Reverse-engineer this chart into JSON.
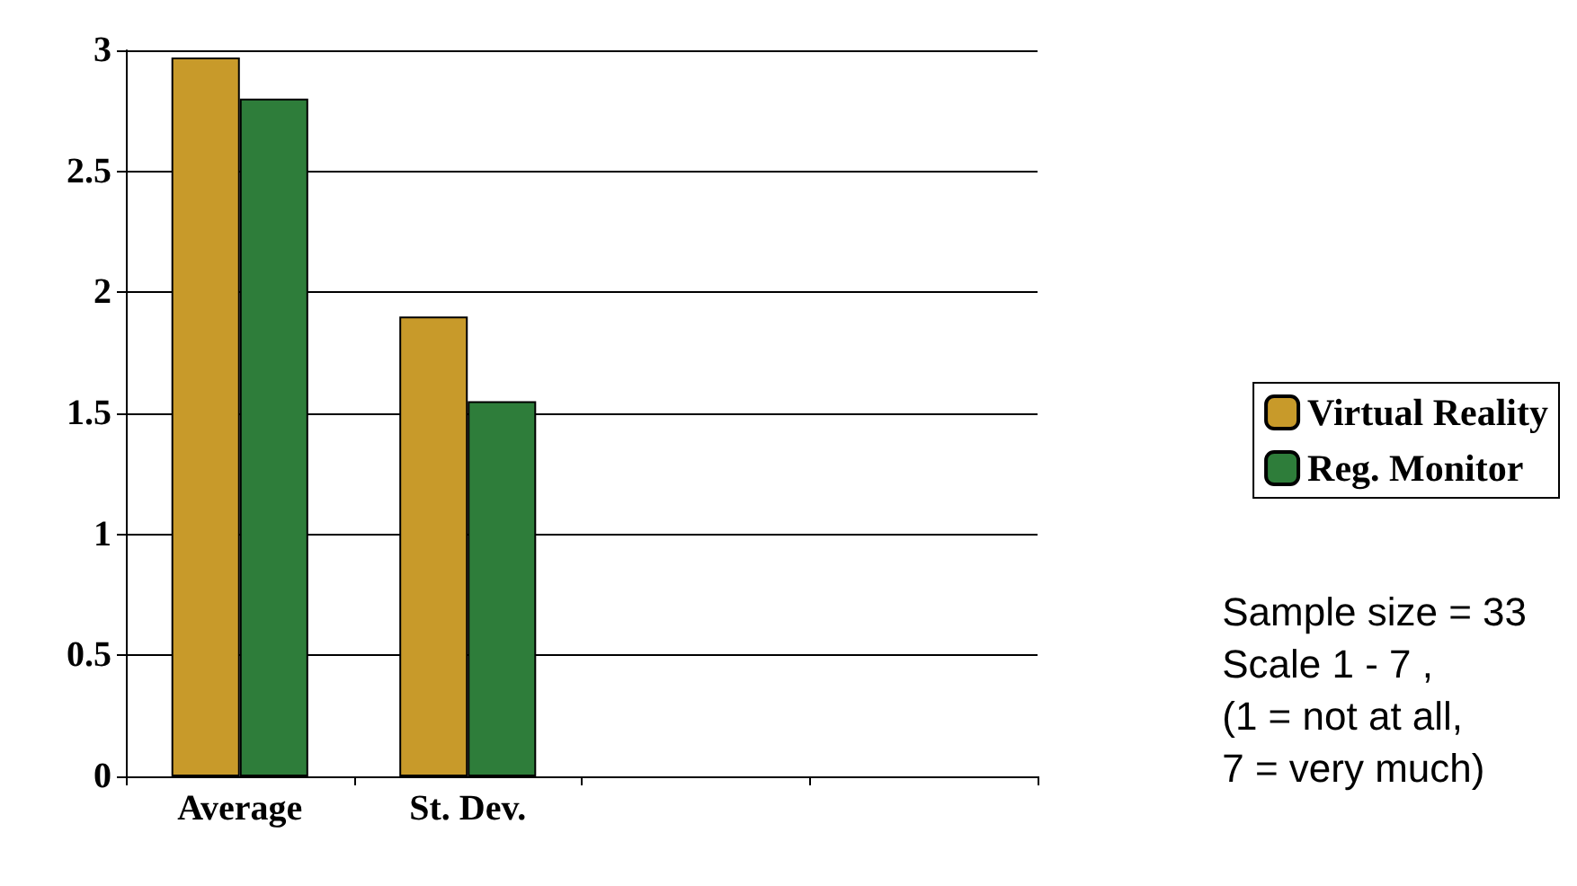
{
  "chart_data": {
    "type": "bar",
    "categories": [
      "Average",
      "St. Dev.",
      null,
      null
    ],
    "series": [
      {
        "name": "Virtual Reality",
        "color": "#c89a2a",
        "values": [
          2.97,
          1.9,
          null,
          null
        ]
      },
      {
        "name": "Reg. Monitor",
        "color": "#2e7d3a",
        "values": [
          2.8,
          1.55,
          null,
          null
        ]
      }
    ],
    "ylim": [
      0,
      3
    ],
    "yticks": [
      0,
      0.5,
      1,
      1.5,
      2,
      2.5,
      3
    ],
    "grid": "y",
    "legend": "right",
    "annotations": [
      "Sample size = 33",
      "Scale 1 - 7 ,",
      "(1 = not at all,",
      "7 = very much)"
    ]
  }
}
